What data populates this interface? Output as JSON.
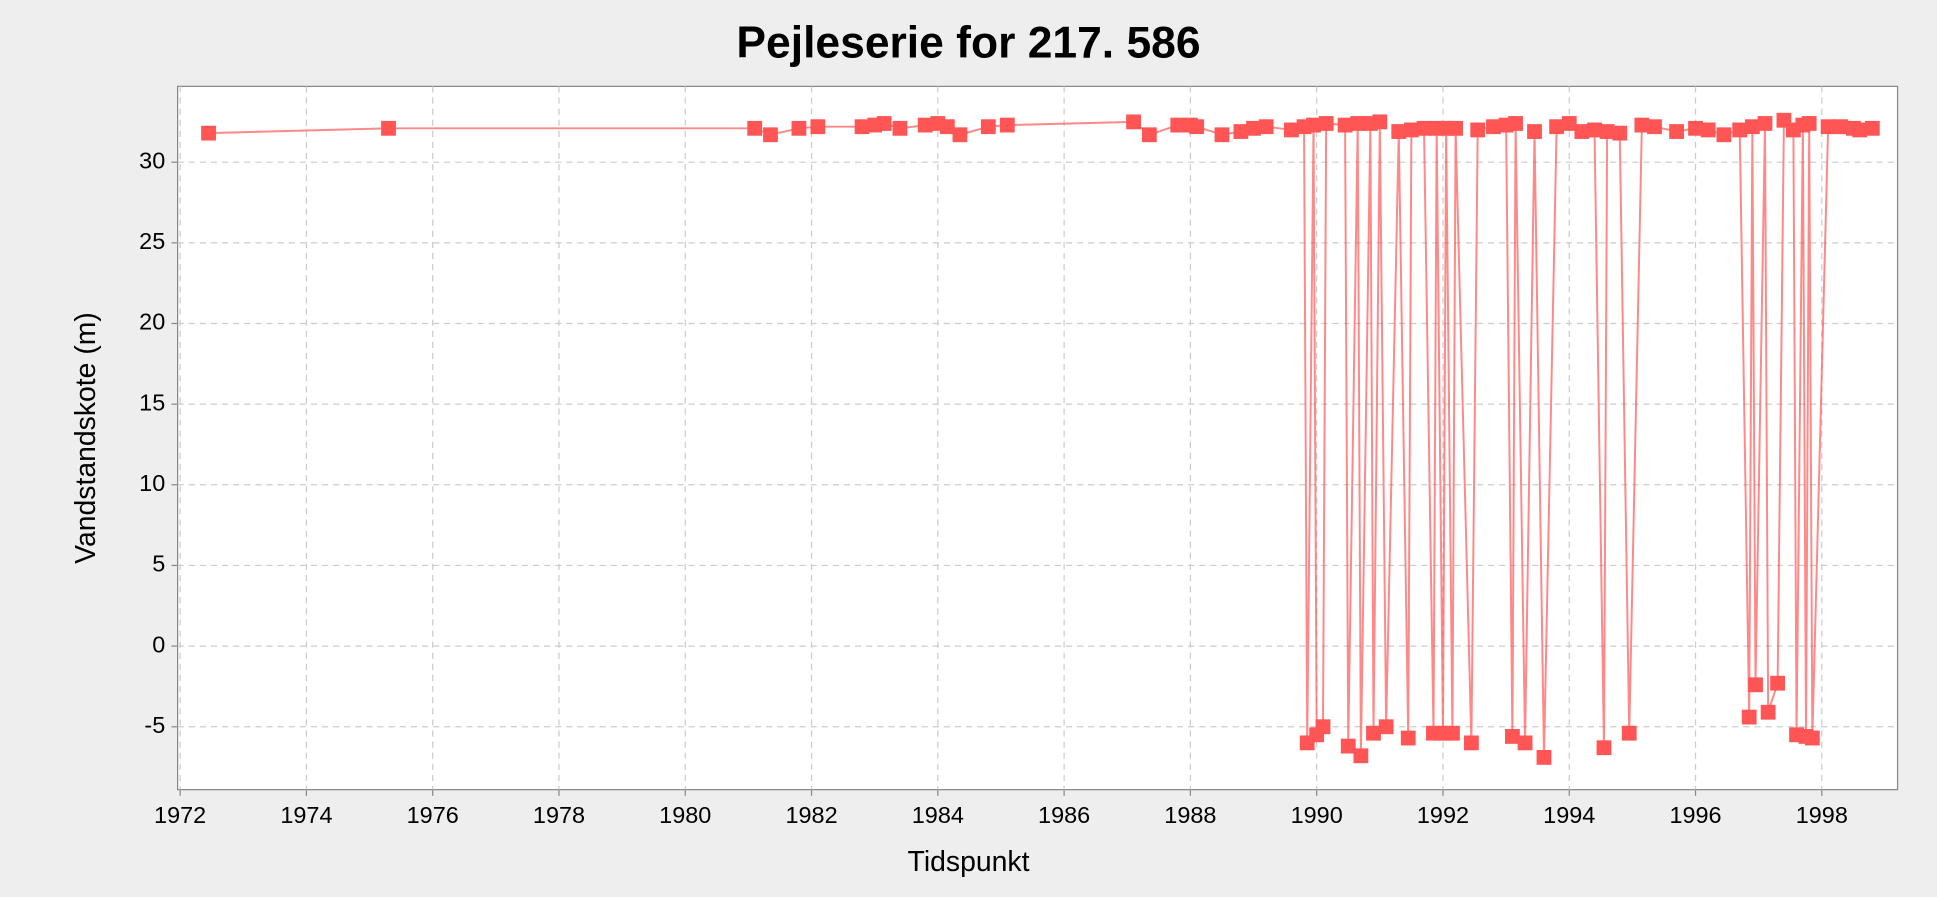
{
  "chart_data": {
    "type": "line",
    "title": "Pejleserie for 217.  586",
    "x_label": "Tidspunkt",
    "y_label": "Vandstandskote (m)",
    "x": [
      1972.45,
      1975.3,
      1981.1,
      1981.35,
      1981.8,
      1982.1,
      1982.8,
      1983.0,
      1983.15,
      1983.4,
      1983.8,
      1984.0,
      1984.15,
      1984.35,
      1984.8,
      1985.1,
      1987.1,
      1987.35,
      1987.8,
      1988.0,
      1988.1,
      1988.5,
      1988.8,
      1989.0,
      1989.2,
      1989.6,
      1989.8,
      1989.85,
      1989.95,
      1990.0,
      1990.1,
      1990.15,
      1990.45,
      1990.5,
      1990.65,
      1990.7,
      1990.85,
      1990.9,
      1991.0,
      1991.1,
      1991.3,
      1991.45,
      1991.5,
      1991.7,
      1991.85,
      1991.9,
      1992.0,
      1992.05,
      1992.15,
      1992.2,
      1992.45,
      1992.55,
      1992.8,
      1993.0,
      1993.1,
      1993.15,
      1993.3,
      1993.45,
      1993.6,
      1993.8,
      1994.0,
      1994.2,
      1994.4,
      1994.55,
      1994.6,
      1994.8,
      1994.95,
      1995.15,
      1995.35,
      1995.7,
      1996.0,
      1996.2,
      1996.45,
      1996.7,
      1996.85,
      1996.9,
      1996.95,
      1997.1,
      1997.15,
      1997.3,
      1997.4,
      1997.55,
      1997.6,
      1997.7,
      1997.75,
      1997.8,
      1997.85,
      1998.1,
      1998.3,
      1998.5,
      1998.6,
      1998.8
    ],
    "series": [
      {
        "color": "#ff5555",
        "values": [
          31.8,
          32.1,
          32.1,
          31.7,
          32.1,
          32.2,
          32.2,
          32.3,
          32.4,
          32.1,
          32.3,
          32.4,
          32.2,
          31.7,
          32.2,
          32.3,
          32.5,
          31.7,
          32.3,
          32.3,
          32.2,
          31.7,
          31.9,
          32.1,
          32.2,
          32.0,
          32.2,
          -6.0,
          32.3,
          -5.5,
          -5.0,
          32.4,
          32.3,
          -6.2,
          32.4,
          -6.8,
          32.4,
          -5.4,
          32.5,
          -5.0,
          31.9,
          -5.7,
          32.0,
          32.1,
          -5.4,
          32.1,
          -5.4,
          32.1,
          -5.4,
          32.1,
          -6.0,
          32.0,
          32.2,
          32.3,
          -5.6,
          32.4,
          -6.0,
          31.9,
          -6.9,
          32.2,
          32.4,
          31.9,
          32.0,
          -6.3,
          31.9,
          31.8,
          -5.4,
          32.3,
          32.2,
          31.9,
          32.1,
          32.0,
          31.7,
          32.0,
          -4.4,
          32.2,
          -2.4,
          32.4,
          -4.1,
          -2.3,
          32.6,
          32.0,
          -5.5,
          32.3,
          -5.6,
          32.4,
          -5.7,
          32.2,
          32.2,
          32.1,
          32.0,
          32.1
        ]
      }
    ],
    "xlim": [
      1971.96,
      1999.2
    ],
    "ylim": [
      -8.9,
      34.7
    ],
    "xticks": [
      1972,
      1974,
      1976,
      1978,
      1980,
      1982,
      1984,
      1986,
      1988,
      1990,
      1992,
      1994,
      1996,
      1998
    ],
    "yticks": [
      -5,
      0,
      5,
      10,
      15,
      20,
      25,
      30
    ],
    "grid": true
  }
}
